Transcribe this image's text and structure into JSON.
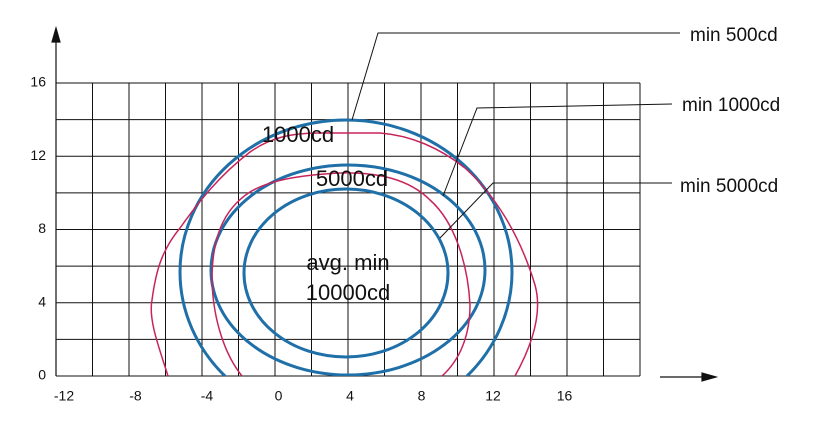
{
  "axes": {
    "x_ticks": [
      "-12",
      "-8",
      "-4",
      "0",
      "4",
      "8",
      "12",
      "16"
    ],
    "y_ticks": [
      "0",
      "4",
      "8",
      "12",
      "16"
    ]
  },
  "curve_labels": [
    "1000cd",
    "5000cd",
    "avg. min",
    "10000cd"
  ],
  "callouts": [
    "min 500cd",
    "min 1000cd",
    "min 5000cd"
  ]
}
